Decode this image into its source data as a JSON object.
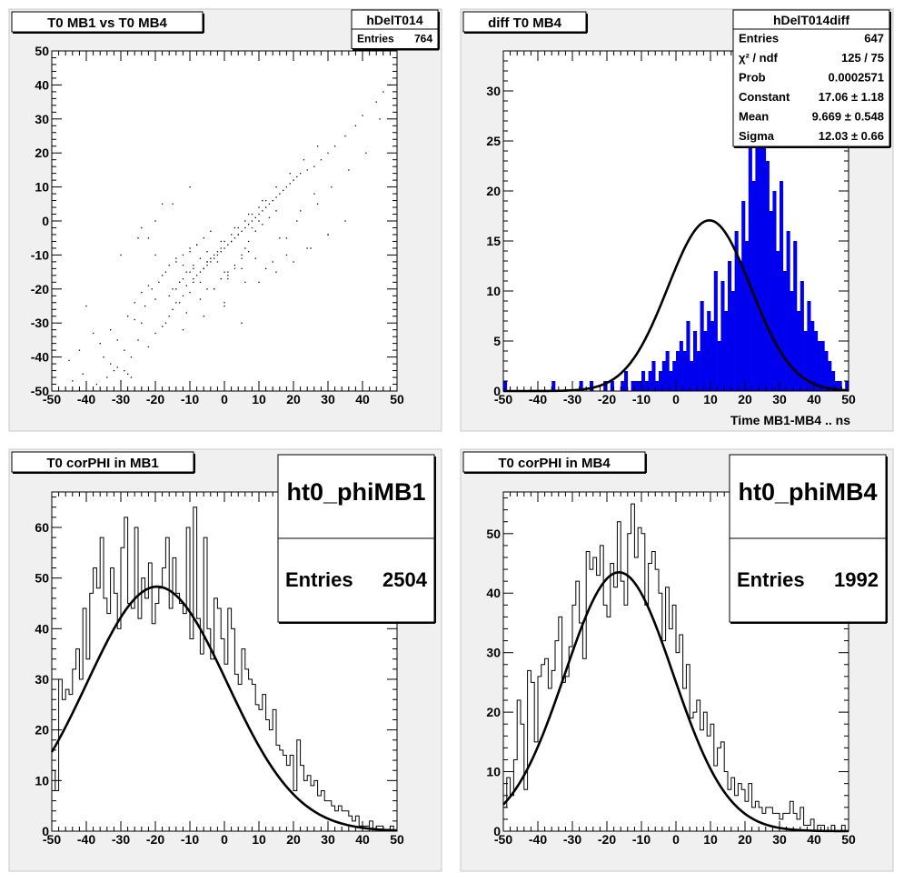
{
  "canvas": {
    "background": "#ffffff",
    "pad_color": "#f0f0f0",
    "frame_color": "#d9d9d9"
  },
  "pads": [
    {
      "title": "T0 MB1 vs T0 MB4",
      "xaxis_title": "",
      "stats": {
        "name": "hDelT014",
        "size": "small",
        "rows": [
          {
            "label": "Entries",
            "value": "764"
          }
        ]
      }
    },
    {
      "title": "diff T0 MB4",
      "xaxis_title": "Time MB1-MB4  ..  ns",
      "stats": {
        "name": "hDelT014diff",
        "size": "small",
        "rows": [
          {
            "label": "Entries",
            "value": "647"
          },
          {
            "label": "χ² / ndf",
            "value": "125 / 75"
          },
          {
            "label": "Prob",
            "value": "0.0002571"
          },
          {
            "label": "Constant",
            "value": "17.06 ± 1.18"
          },
          {
            "label": "Mean",
            "value": "9.669 ± 0.548"
          },
          {
            "label": "Sigma",
            "value": "12.03 ± 0.66"
          }
        ]
      }
    },
    {
      "title": "T0 corPHI in MB1",
      "xaxis_title": "",
      "stats": {
        "name": "ht0_phiMB1",
        "size": "large",
        "rows": [
          {
            "label": "Entries",
            "value": "2504"
          }
        ]
      }
    },
    {
      "title": "T0 corPHI in MB4",
      "xaxis_title": "",
      "stats": {
        "name": "ht0_phiMB4",
        "size": "large",
        "rows": [
          {
            "label": "Entries",
            "value": "1992"
          }
        ]
      }
    }
  ],
  "chart_data": [
    {
      "type": "scatter",
      "title": "T0 MB1 vs T0 MB4",
      "xlim": [
        -50,
        50
      ],
      "ylim": [
        -50,
        50
      ],
      "x_ticks": [
        -50,
        -40,
        -30,
        -20,
        -10,
        0,
        10,
        20,
        30,
        40,
        50
      ],
      "y_ticks": [
        -50,
        -40,
        -30,
        -20,
        -10,
        0,
        10,
        20,
        30,
        40,
        50
      ],
      "marker_color": "#000000",
      "points": {
        "x": [
          -30,
          -29,
          -28,
          -31,
          -27,
          -33,
          -35,
          -22,
          -25,
          -20,
          -18,
          -24,
          -16,
          -15,
          -14,
          -12,
          -10,
          -11,
          -13,
          -9,
          -8,
          -7,
          -6,
          -5,
          -4,
          -3,
          -2,
          -1,
          0,
          1,
          2,
          3,
          4,
          5,
          6,
          7,
          8,
          9,
          10,
          11,
          12,
          13,
          14,
          15,
          16,
          17,
          18,
          19,
          20,
          21,
          22,
          24,
          26,
          28,
          30,
          32,
          35,
          38,
          40,
          44,
          46,
          48,
          -19,
          -21,
          -17,
          -23,
          -26,
          -14,
          -12,
          -10,
          -8,
          -6,
          -4,
          -2,
          0,
          2,
          4,
          6,
          8,
          10,
          12,
          -16,
          -14,
          -12,
          -10,
          -9,
          -7,
          -5,
          -3,
          -1,
          1,
          3,
          5,
          7,
          9,
          11,
          13,
          15,
          -40,
          -38,
          -42,
          -36,
          -45,
          -20,
          -22,
          -24,
          -18,
          -12,
          -6,
          0,
          6,
          12,
          18,
          24,
          30,
          -28,
          -26,
          -24,
          -22,
          -20,
          -18,
          -16,
          -14,
          -12,
          -10,
          -8,
          -6,
          -4,
          -2,
          0,
          2,
          4,
          6,
          8,
          10,
          14,
          18,
          22,
          26,
          -15,
          -13,
          -11,
          -9,
          -7,
          -5,
          -3,
          -1,
          1,
          3,
          5,
          7,
          -17,
          -13,
          -9,
          -5,
          -1,
          3,
          7,
          11,
          15,
          19,
          23,
          27,
          -30,
          -25,
          -20,
          -15,
          -10,
          -5,
          0,
          5,
          10,
          15,
          20,
          25,
          30,
          35,
          -33,
          -31,
          -29,
          -27,
          -44,
          -41,
          -37,
          -34,
          -32,
          -11,
          -7,
          -3,
          1,
          5,
          9,
          16,
          21,
          27,
          31,
          36,
          41,
          45
        ],
        "y": [
          -47,
          -44,
          -45,
          -43,
          -46,
          -42,
          -40,
          -37,
          -35,
          -33,
          -31,
          -30,
          -28,
          -26,
          -24,
          -22,
          -21,
          -19,
          -18,
          -17,
          -16,
          -15,
          -14,
          -13,
          -12,
          -11,
          -10,
          -9,
          -8,
          -7,
          -6,
          -5,
          -4,
          -3,
          -2,
          -1,
          0,
          1,
          2,
          3,
          4,
          5,
          6,
          7,
          8,
          9,
          10,
          11,
          12,
          13,
          14,
          15,
          16,
          18,
          20,
          22,
          25,
          28,
          31,
          35,
          38,
          40,
          -18,
          -20,
          -15,
          -25,
          -29,
          -11,
          -13,
          -9,
          -7,
          -5,
          -3,
          -12,
          -6,
          -4,
          -2,
          0,
          2,
          4,
          6,
          -22,
          -20,
          -17,
          -15,
          -14,
          -18,
          -12,
          -10,
          -8,
          -16,
          -14,
          -10,
          -6,
          -3,
          -1,
          1,
          3,
          -25,
          -33,
          -38,
          -36,
          -41,
          -10,
          -5,
          -2,
          5,
          -32,
          -28,
          -24,
          -18,
          -14,
          -10,
          -8,
          -4,
          -28,
          -24,
          -21,
          -19,
          -23,
          -16,
          -13,
          -12,
          -10,
          -8,
          -7,
          -14,
          -11,
          -9,
          -15,
          -6,
          -4,
          -8,
          -2,
          0,
          -12,
          -5,
          3,
          8,
          -20,
          -18,
          -15,
          -13,
          -11,
          -9,
          -20,
          -17,
          -15,
          -13,
          -11,
          -9,
          -30,
          -24,
          -18,
          -12,
          -6,
          -2,
          2,
          6,
          10,
          14,
          18,
          22,
          -10,
          -5,
          0,
          5,
          10,
          -20,
          -25,
          -30,
          -18,
          -15,
          -12,
          -8,
          -4,
          0,
          -32,
          -35,
          -38,
          -40,
          -47,
          -45,
          -48,
          -46,
          -44,
          -27,
          -23,
          -20,
          -17,
          -14,
          -11,
          -5,
          0,
          5,
          10,
          15,
          20,
          30
        ]
      }
    },
    {
      "type": "bar",
      "title": "diff T0 MB4",
      "xlabel": "Time MB1-MB4  ..  ns",
      "xlim": [
        -50,
        50
      ],
      "ylim": [
        0,
        34
      ],
      "x_ticks": [
        -50,
        -40,
        -30,
        -20,
        -10,
        0,
        10,
        20,
        30,
        40,
        50
      ],
      "y_ticks": [
        0,
        5,
        10,
        15,
        20,
        25,
        30
      ],
      "fill_color": "#0000ee",
      "bin_low": -50,
      "bin_width": 1,
      "values": [
        1,
        0,
        0,
        0,
        0,
        0,
        0,
        0,
        0,
        0,
        0,
        0,
        0,
        0,
        1,
        0,
        0,
        0,
        0,
        0,
        0,
        0,
        1,
        0,
        0,
        1,
        0,
        0,
        0,
        1,
        0,
        1,
        0,
        0,
        1,
        2,
        0,
        1,
        1,
        1,
        2,
        1,
        2,
        3,
        1,
        2,
        3,
        4,
        2,
        3,
        4,
        5,
        4,
        7,
        3,
        6,
        4,
        9,
        6,
        8,
        7,
        12,
        5,
        11,
        8,
        13,
        10,
        16,
        13,
        19,
        15,
        26,
        21,
        33,
        27,
        32,
        23,
        18,
        20,
        14,
        21,
        12,
        16,
        10,
        15,
        8,
        11,
        6,
        9,
        7,
        6,
        5,
        5,
        4,
        3,
        2,
        1,
        1,
        0,
        1
      ],
      "fit": {
        "function": "gaus",
        "constant": 17.06,
        "mean": 9.669,
        "sigma": 12.03,
        "color": "#000000"
      }
    },
    {
      "type": "line",
      "title": "T0 corPHI in MB1",
      "xlim": [
        -50,
        50
      ],
      "ylim": [
        0,
        67
      ],
      "x_ticks": [
        -50,
        -40,
        -30,
        -20,
        -10,
        0,
        10,
        20,
        30,
        40,
        50
      ],
      "y_ticks": [
        0,
        10,
        20,
        30,
        40,
        50,
        60
      ],
      "line_color": "#000000",
      "bin_low": -50,
      "bin_width": 1,
      "values": [
        12,
        8,
        30,
        26,
        28,
        27,
        32,
        36,
        30,
        44,
        34,
        47,
        52,
        48,
        58,
        46,
        43,
        52,
        47,
        40,
        56,
        62,
        45,
        44,
        60,
        42,
        50,
        46,
        53,
        41,
        45,
        48,
        52,
        58,
        44,
        54,
        47,
        45,
        43,
        60,
        38,
        64,
        42,
        35,
        58,
        40,
        34,
        46,
        44,
        38,
        33,
        44,
        40,
        31,
        29,
        36,
        32,
        30,
        29,
        25,
        24,
        27,
        22,
        20,
        24,
        17,
        16,
        15,
        13,
        15,
        8,
        18,
        13,
        10,
        11,
        9,
        10,
        7,
        8,
        6,
        6,
        5,
        4,
        5,
        4,
        4,
        3,
        2,
        3,
        1,
        1,
        1,
        2,
        0,
        1,
        1,
        0,
        0,
        1,
        0
      ],
      "fit": {
        "function": "gaus",
        "constant": 48.3,
        "mean": -19.5,
        "sigma": 20.3,
        "color": "#000000"
      }
    },
    {
      "type": "line",
      "title": "T0 corPHI in MB4",
      "xlim": [
        -50,
        50
      ],
      "ylim": [
        0,
        57
      ],
      "x_ticks": [
        -50,
        -40,
        -30,
        -20,
        -10,
        0,
        10,
        20,
        30,
        40,
        50
      ],
      "y_ticks": [
        0,
        10,
        20,
        30,
        40,
        50
      ],
      "line_color": "#000000",
      "bin_low": -50,
      "bin_width": 1,
      "values": [
        4,
        9,
        6,
        12,
        22,
        18,
        7,
        27,
        25,
        15,
        26,
        28,
        29,
        24,
        27,
        32,
        36,
        25,
        26,
        31,
        38,
        42,
        35,
        29,
        47,
        44,
        46,
        43,
        48,
        38,
        36,
        45,
        41,
        52,
        42,
        38,
        50,
        55,
        46,
        51,
        50,
        38,
        45,
        47,
        44,
        40,
        32,
        41,
        34,
        38,
        30,
        33,
        24,
        28,
        19,
        20,
        22,
        17,
        20,
        16,
        18,
        11,
        14,
        15,
        10,
        7,
        9,
        6,
        8,
        7,
        5,
        8,
        4,
        5,
        4,
        3,
        4,
        4,
        3,
        3,
        2,
        3,
        3,
        5,
        3,
        2,
        4,
        1,
        1,
        2,
        0,
        1,
        1,
        0,
        0,
        1,
        0,
        0,
        1,
        0
      ],
      "fit": {
        "function": "gaus",
        "constant": 43.5,
        "mean": -16.5,
        "sigma": 15.7,
        "color": "#000000"
      }
    }
  ]
}
